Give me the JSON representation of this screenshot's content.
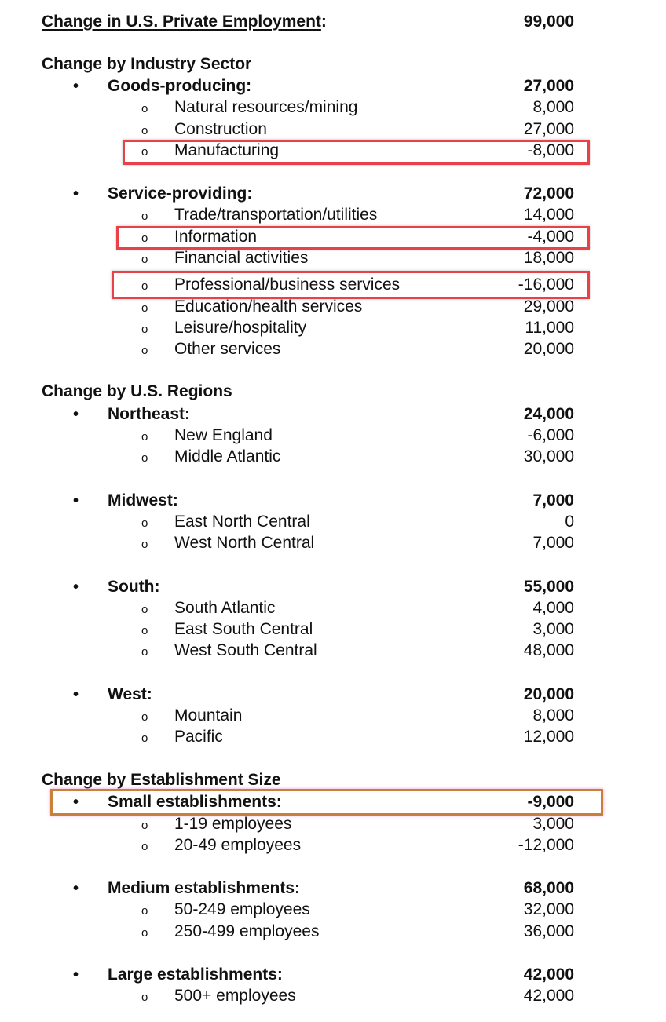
{
  "title": {
    "label": "Change in U.S. Private Employment",
    "colon": ":",
    "value": "99,000"
  },
  "sections": [
    {
      "heading": "Change by Industry Sector",
      "groups": [
        {
          "label": "Goods-producing:",
          "value": "27,000",
          "items": [
            {
              "label": "Natural resources/mining",
              "value": "8,000"
            },
            {
              "label": "Construction",
              "value": "27,000"
            },
            {
              "label": "Manufacturing",
              "value": "-8,000"
            }
          ]
        },
        {
          "label": "Service-providing:",
          "value": "72,000",
          "items": [
            {
              "label": "Trade/transportation/utilities",
              "value": "14,000"
            },
            {
              "label": "Information",
              "value": "-4,000"
            },
            {
              "label": "Financial activities",
              "value": "18,000"
            },
            {
              "label": "Professional/business services",
              "value": "-16,000"
            },
            {
              "label": "Education/health services",
              "value": "29,000"
            },
            {
              "label": "Leisure/hospitality",
              "value": "11,000"
            },
            {
              "label": "Other services",
              "value": "20,000"
            }
          ]
        }
      ]
    },
    {
      "heading": "Change by U.S. Regions",
      "groups": [
        {
          "label": "Northeast:",
          "value": "24,000",
          "items": [
            {
              "label": "New England",
              "value": "-6,000"
            },
            {
              "label": "Middle Atlantic",
              "value": "30,000"
            }
          ]
        },
        {
          "label": "Midwest:",
          "value": "7,000",
          "items": [
            {
              "label": "East North Central",
              "value": "0"
            },
            {
              "label": "West North Central",
              "value": "7,000"
            }
          ]
        },
        {
          "label": "South:",
          "value": "55,000",
          "items": [
            {
              "label": "South Atlantic",
              "value": "4,000"
            },
            {
              "label": "East South Central",
              "value": "3,000"
            },
            {
              "label": "West South Central",
              "value": "48,000"
            }
          ]
        },
        {
          "label": "West:",
          "value": "20,000",
          "items": [
            {
              "label": "Mountain",
              "value": "8,000"
            },
            {
              "label": "Pacific",
              "value": "12,000"
            }
          ]
        }
      ]
    },
    {
      "heading": "Change by Establishment Size",
      "groups": [
        {
          "label": "Small establishments:",
          "value": "-9,000",
          "items": [
            {
              "label": "1-19 employees",
              "value": "3,000"
            },
            {
              "label": "20-49 employees",
              "value": "-12,000"
            }
          ]
        },
        {
          "label": "Medium establishments:",
          "value": "68,000",
          "items": [
            {
              "label": "50-249 employees",
              "value": "32,000"
            },
            {
              "label": "250-499 employees",
              "value": "36,000"
            }
          ]
        },
        {
          "label": "Large establishments:",
          "value": "42,000",
          "items": [
            {
              "label": "500+ employees",
              "value": "42,000"
            }
          ]
        }
      ]
    }
  ],
  "glyphs": {
    "bullet": "•",
    "sub_bullet": "o"
  },
  "highlight_colors": {
    "red": "#e8414a",
    "orange": "#c9803a"
  }
}
